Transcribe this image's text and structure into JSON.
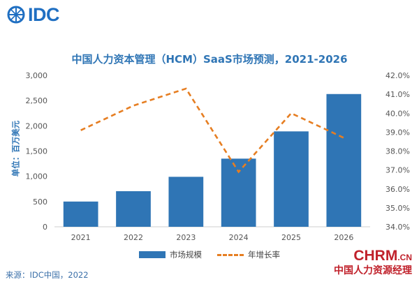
{
  "logo": {
    "text": "IDC",
    "color": "#1f6fc2"
  },
  "title": "中国人力资本管理（HCM）SaaS市场预测，2021-2026",
  "source": "来源：IDC中国，2022",
  "watermark": {
    "main": "CHRM",
    "suffix": ".CN",
    "sub": "中国人力资源经理",
    "color": "#c0212b"
  },
  "colors": {
    "bar": "#2f75b5",
    "line": "#e67e22",
    "axis_text": "#555555"
  },
  "chart_data": {
    "type": "bar",
    "categories": [
      "2021",
      "2022",
      "2023",
      "2024",
      "2025",
      "2026"
    ],
    "series": [
      {
        "name": "市场规模",
        "type": "bar",
        "axis": "left",
        "values": [
          500,
          705,
          990,
          1350,
          1890,
          2630
        ]
      },
      {
        "name": "年增长率",
        "type": "line",
        "axis": "right",
        "style": "dashed",
        "values": [
          39.1,
          40.4,
          41.3,
          36.9,
          40.0,
          38.7
        ]
      }
    ],
    "title": "中国人力资本管理（HCM）SaaS市场预测，2021-2026",
    "xlabel": "",
    "ylabel": "单位：百万美元",
    "ylim": [
      0,
      3000
    ],
    "yticks": [
      "0",
      "500",
      "1,000",
      "1,500",
      "2,000",
      "2,500",
      "3,000"
    ],
    "ylim_right": [
      34,
      42
    ],
    "yticks_right": [
      "34.0%",
      "35.0%",
      "36.0%",
      "37.0%",
      "38.0%",
      "39.0%",
      "40.0%",
      "41.0%",
      "42.0%"
    ],
    "grid": false,
    "legend_position": "bottom"
  }
}
